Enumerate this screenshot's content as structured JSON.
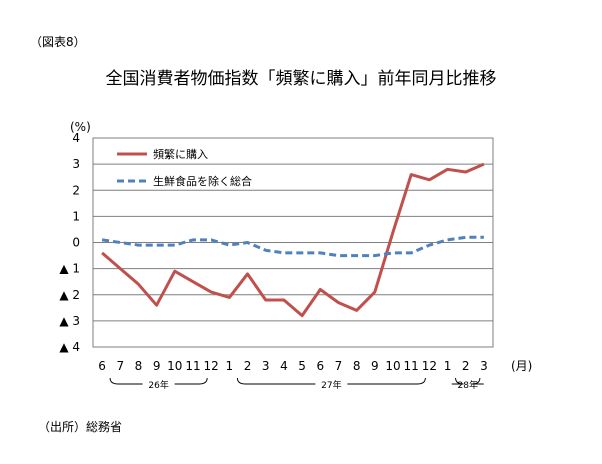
{
  "figure_label": "（図表8）",
  "source": "（出所）総務省",
  "chart_data": {
    "type": "line",
    "title": "全国消費者物価指数「頻繁に購入」前年同月比推移",
    "ylabel": "(%)",
    "xlabel": "(月)",
    "ylim": [
      -4,
      4
    ],
    "y_ticks": [
      4,
      3,
      2,
      1,
      0,
      -1,
      -2,
      -3,
      -4
    ],
    "y_tick_labels": [
      "4",
      "3",
      "2",
      "1",
      "0",
      "▲ 1",
      "▲ 2",
      "▲ 3",
      "▲ 4"
    ],
    "categories": [
      "6",
      "7",
      "8",
      "9",
      "10",
      "11",
      "12",
      "1",
      "2",
      "3",
      "4",
      "5",
      "6",
      "7",
      "8",
      "9",
      "10",
      "11",
      "12",
      "1",
      "2",
      "3"
    ],
    "year_groups": [
      {
        "label": "26年",
        "months": 7
      },
      {
        "label": "27年",
        "months": 12
      },
      {
        "label": "28年",
        "months": 3
      }
    ],
    "grid": true,
    "legend_position": "top-left",
    "series": [
      {
        "name": "頻繁に購入",
        "color": "#c0504d",
        "style": "solid",
        "values": [
          -0.4,
          -1.0,
          -1.6,
          -2.4,
          -1.1,
          -1.5,
          -1.9,
          -2.1,
          -1.2,
          -2.2,
          -2.2,
          -2.8,
          -1.8,
          -2.3,
          -2.6,
          -1.9,
          0.4,
          2.6,
          2.4,
          2.8,
          2.7,
          3.0
        ]
      },
      {
        "name": "生鮮食品を除く総合",
        "color": "#4f81bd",
        "style": "dashed",
        "values": [
          0.1,
          0.0,
          -0.1,
          -0.1,
          -0.1,
          0.1,
          0.1,
          -0.1,
          0.0,
          -0.3,
          -0.4,
          -0.4,
          -0.4,
          -0.5,
          -0.5,
          -0.5,
          -0.4,
          -0.4,
          -0.1,
          0.1,
          0.2,
          0.2
        ]
      }
    ]
  }
}
